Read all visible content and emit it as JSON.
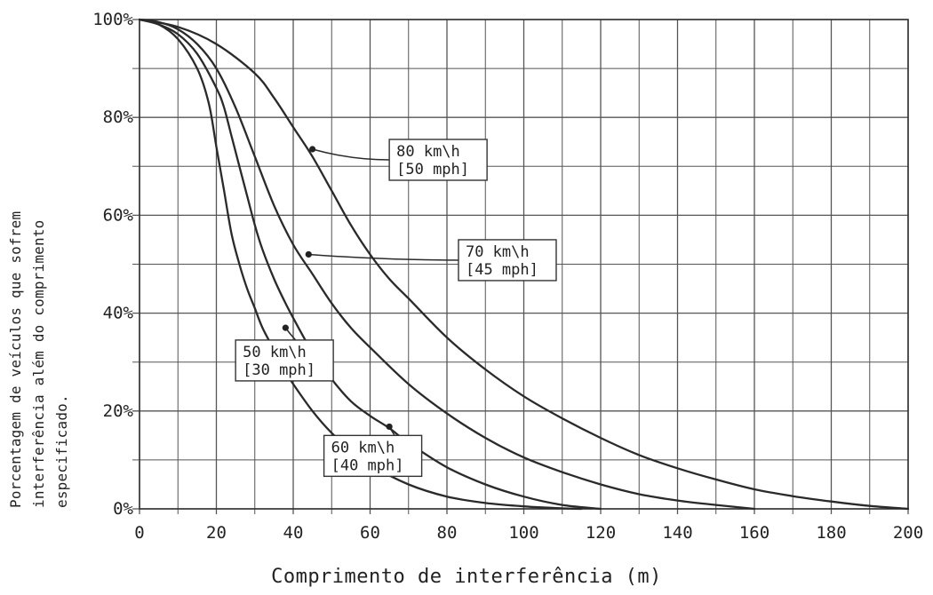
{
  "chart_data": {
    "type": "line",
    "xlabel": "Comprimento de interferência (m)",
    "ylabel": [
      "Porcentagem de veículos que sofrem",
      "interferência além do comprimento",
      "especificado."
    ],
    "xlim": [
      0,
      200
    ],
    "ylim": [
      0,
      100
    ],
    "x_ticks": [
      "0",
      "20",
      "40",
      "60",
      "80",
      "100",
      "120",
      "140",
      "160",
      "180",
      "200"
    ],
    "y_ticks": [
      "0%",
      "20%",
      "40%",
      "60%",
      "80%",
      "100%"
    ],
    "grid": true,
    "series": [
      {
        "name": "50 km\\h [30 mph]",
        "label_lines": [
          "50 km\\h",
          "[30 mph]"
        ],
        "x": [
          0,
          5,
          10,
          15,
          18,
          20,
          22,
          24,
          26,
          28,
          30,
          32,
          35,
          38,
          40,
          45,
          50,
          55,
          60,
          70,
          80,
          90,
          100,
          110,
          115
        ],
        "y": [
          100,
          99,
          96,
          90,
          83,
          74,
          65,
          56,
          50,
          45,
          41,
          37,
          32.5,
          28,
          25.5,
          20,
          15.5,
          12,
          9,
          5,
          2.5,
          1.2,
          0.5,
          0.1,
          0
        ]
      },
      {
        "name": "60 km\\h [40 mph]",
        "label_lines": [
          "60 km\\h",
          "[40 mph]"
        ],
        "x": [
          0,
          5,
          10,
          15,
          20,
          22,
          24,
          26,
          28,
          30,
          32,
          35,
          38,
          40,
          45,
          50,
          55,
          60,
          65,
          70,
          80,
          90,
          100,
          110,
          120
        ],
        "y": [
          100,
          99,
          97,
          93,
          86,
          82,
          76,
          70,
          64,
          58,
          53,
          47,
          42,
          39,
          32,
          26.5,
          22,
          19,
          16.5,
          13.5,
          8.5,
          5,
          2.5,
          0.8,
          0
        ]
      },
      {
        "name": "70 km\\h [45 mph]",
        "label_lines": [
          "70 km\\h",
          "[45 mph]"
        ],
        "x": [
          0,
          5,
          10,
          15,
          20,
          25,
          30,
          35,
          40,
          45,
          50,
          55,
          60,
          70,
          80,
          90,
          100,
          110,
          120,
          130,
          140,
          150,
          160
        ],
        "y": [
          100,
          99.5,
          98,
          95,
          90,
          82,
          72,
          62,
          54,
          48,
          42,
          37,
          33,
          25.5,
          19.5,
          14.5,
          10.5,
          7.5,
          5,
          3,
          1.7,
          0.8,
          0
        ]
      },
      {
        "name": "80 km\\h [50 mph]",
        "label_lines": [
          "80 km\\h",
          "[50 mph]"
        ],
        "x": [
          0,
          10,
          20,
          30,
          35,
          40,
          45,
          50,
          55,
          60,
          65,
          70,
          80,
          90,
          100,
          110,
          120,
          130,
          140,
          150,
          160,
          170,
          180,
          190,
          200
        ],
        "y": [
          100,
          98.5,
          95,
          89,
          84,
          78,
          72,
          65,
          58,
          52,
          47,
          43,
          35,
          28.5,
          23,
          18.5,
          14.5,
          11,
          8.3,
          6,
          4,
          2.6,
          1.5,
          0.6,
          0
        ]
      }
    ]
  },
  "annotations": [
    {
      "series": 3,
      "x": 45,
      "y": 73.5,
      "box_x": 65,
      "box_y": 75.5
    },
    {
      "series": 2,
      "x": 44,
      "y": 52,
      "box_x": 83,
      "box_y": 55
    },
    {
      "series": 0,
      "x": 38,
      "y": 37,
      "box_x": 25,
      "box_y": 34.5
    },
    {
      "series": 1,
      "x": 65,
      "y": 16.8,
      "box_x": 48,
      "box_y": 15
    }
  ]
}
